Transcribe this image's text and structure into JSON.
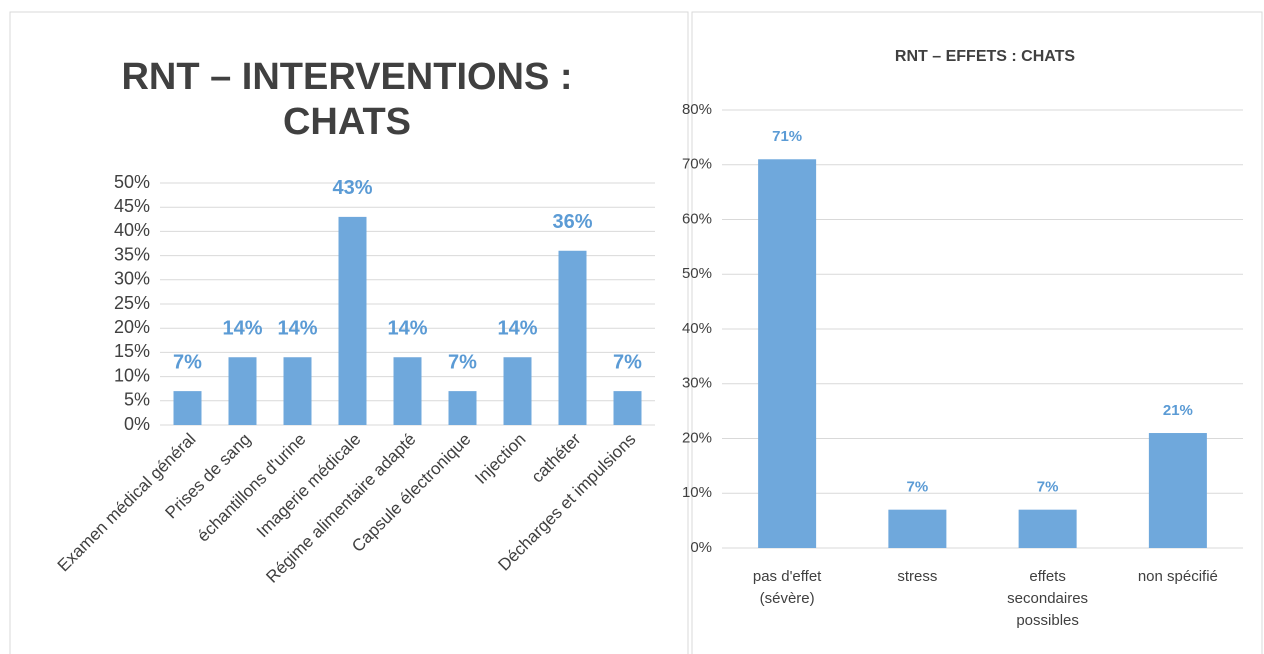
{
  "chart_data": [
    {
      "type": "bar",
      "title": "RNT – INTERVENTIONS : CHATS",
      "categories": [
        "Examen médical général",
        "Prises de sang",
        "échantillons d'urine",
        "Imagerie médicale",
        "Régime alimentaire adapté",
        "Capsule électronique",
        "Injection",
        "cathéter",
        "Décharges et impulsions"
      ],
      "values": [
        7,
        14,
        14,
        43,
        14,
        7,
        14,
        36,
        7
      ],
      "value_labels": [
        "7%",
        "14%",
        "14%",
        "43%",
        "14%",
        "7%",
        "14%",
        "36%",
        "7%"
      ],
      "color": "#6fa8dc",
      "label_color": "#5b9bd5",
      "ylim": [
        0,
        50
      ],
      "yticks": [
        {
          "value": 0,
          "label": "0%"
        },
        {
          "value": 5,
          "label": "5%"
        },
        {
          "value": 10,
          "label": "10%"
        },
        {
          "value": 15,
          "label": "15%"
        },
        {
          "value": 20,
          "label": "20%"
        },
        {
          "value": 25,
          "label": "25%"
        },
        {
          "value": 30,
          "label": "30%"
        },
        {
          "value": 35,
          "label": "35%"
        },
        {
          "value": 40,
          "label": "40%"
        },
        {
          "value": 45,
          "label": "45%"
        },
        {
          "value": 50,
          "label": "50%"
        }
      ],
      "grid": true
    },
    {
      "type": "bar",
      "title": "RNT – EFFETS : CHATS",
      "categories": [
        "pas d'effet (sévère)",
        "stress",
        "effets secondaires possibles",
        "non spécifié"
      ],
      "values": [
        71,
        7,
        7,
        21
      ],
      "value_labels": [
        "71%",
        "7%",
        "7%",
        "21%"
      ],
      "color": "#6fa8dc",
      "label_color": "#5b9bd5",
      "ylim": [
        0,
        80
      ],
      "yticks": [
        {
          "value": 0,
          "label": "0%"
        },
        {
          "value": 10,
          "label": "10%"
        },
        {
          "value": 20,
          "label": "20%"
        },
        {
          "value": 30,
          "label": "30%"
        },
        {
          "value": 40,
          "label": "40%"
        },
        {
          "value": 50,
          "label": "50%"
        },
        {
          "value": 60,
          "label": "60%"
        },
        {
          "value": 70,
          "label": "70%"
        },
        {
          "value": 80,
          "label": "80%"
        }
      ],
      "grid": true
    }
  ]
}
